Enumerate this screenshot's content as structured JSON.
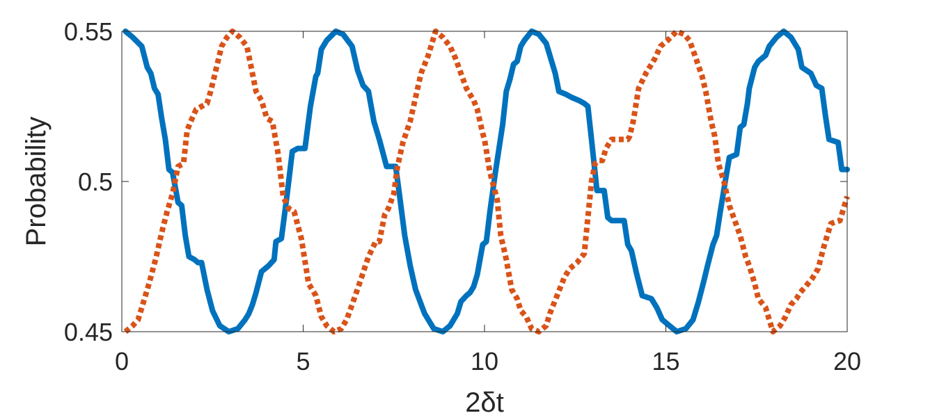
{
  "chart_data": {
    "type": "line",
    "title": "",
    "xlabel": "2δt",
    "ylabel": "Probability",
    "xlim": [
      0,
      20
    ],
    "ylim": [
      0.45,
      0.55
    ],
    "xticks": [
      0,
      5,
      10,
      15,
      20
    ],
    "yticks": [
      0.45,
      0.5,
      0.55
    ],
    "x_tick_labels": [
      "0",
      "5",
      "10",
      "15",
      "20"
    ],
    "y_tick_labels": [
      "0.45",
      "0.5",
      "0.55"
    ],
    "grid": false,
    "legend": "none",
    "series": [
      {
        "color": "#0072BD",
        "style": "solid",
        "points": [
          [
            0.1,
            0.55
          ],
          [
            0.3,
            0.548
          ],
          [
            0.55,
            0.545
          ],
          [
            0.7,
            0.538
          ],
          [
            0.8,
            0.536
          ],
          [
            0.9,
            0.531
          ],
          [
            1.0,
            0.529
          ],
          [
            1.1,
            0.521
          ],
          [
            1.2,
            0.514
          ],
          [
            1.3,
            0.504
          ],
          [
            1.4,
            0.503
          ],
          [
            1.55,
            0.493
          ],
          [
            1.65,
            0.492
          ],
          [
            1.75,
            0.482
          ],
          [
            1.85,
            0.475
          ],
          [
            2.0,
            0.474
          ],
          [
            2.1,
            0.473
          ],
          [
            2.2,
            0.473
          ],
          [
            2.35,
            0.464
          ],
          [
            2.5,
            0.457
          ],
          [
            2.7,
            0.452
          ],
          [
            2.95,
            0.45
          ],
          [
            3.2,
            0.451
          ],
          [
            3.4,
            0.454
          ],
          [
            3.5,
            0.456
          ],
          [
            3.6,
            0.459
          ],
          [
            3.7,
            0.463
          ],
          [
            3.85,
            0.47
          ],
          [
            4.05,
            0.472
          ],
          [
            4.2,
            0.474
          ],
          [
            4.25,
            0.48
          ],
          [
            4.4,
            0.481
          ],
          [
            4.55,
            0.495
          ],
          [
            4.7,
            0.51
          ],
          [
            4.85,
            0.511
          ],
          [
            5.05,
            0.511
          ],
          [
            5.2,
            0.525
          ],
          [
            5.35,
            0.535
          ],
          [
            5.4,
            0.536
          ],
          [
            5.5,
            0.544
          ],
          [
            5.65,
            0.547
          ],
          [
            5.9,
            0.55
          ],
          [
            6.1,
            0.549
          ],
          [
            6.35,
            0.545
          ],
          [
            6.5,
            0.537
          ],
          [
            6.65,
            0.532
          ],
          [
            6.8,
            0.53
          ],
          [
            6.95,
            0.52
          ],
          [
            7.1,
            0.514
          ],
          [
            7.3,
            0.505
          ],
          [
            7.55,
            0.505
          ],
          [
            7.65,
            0.496
          ],
          [
            7.8,
            0.482
          ],
          [
            7.95,
            0.472
          ],
          [
            8.1,
            0.464
          ],
          [
            8.35,
            0.456
          ],
          [
            8.6,
            0.451
          ],
          [
            8.85,
            0.45
          ],
          [
            9.05,
            0.452
          ],
          [
            9.25,
            0.456
          ],
          [
            9.35,
            0.46
          ],
          [
            9.5,
            0.462
          ],
          [
            9.6,
            0.463
          ],
          [
            9.7,
            0.465
          ],
          [
            9.8,
            0.469
          ],
          [
            9.95,
            0.479
          ],
          [
            10.05,
            0.48
          ],
          [
            10.15,
            0.49
          ],
          [
            10.3,
            0.503
          ],
          [
            10.5,
            0.519
          ],
          [
            10.6,
            0.53
          ],
          [
            10.7,
            0.534
          ],
          [
            10.8,
            0.539
          ],
          [
            10.9,
            0.54
          ],
          [
            11.0,
            0.545
          ],
          [
            11.1,
            0.547
          ],
          [
            11.3,
            0.55
          ],
          [
            11.5,
            0.549
          ],
          [
            11.7,
            0.546
          ],
          [
            11.85,
            0.54
          ],
          [
            11.95,
            0.536
          ],
          [
            12.05,
            0.53
          ],
          [
            12.25,
            0.529
          ],
          [
            12.4,
            0.528
          ],
          [
            12.6,
            0.527
          ],
          [
            12.75,
            0.526
          ],
          [
            12.85,
            0.525
          ],
          [
            12.95,
            0.514
          ],
          [
            13.1,
            0.497
          ],
          [
            13.3,
            0.497
          ],
          [
            13.4,
            0.488
          ],
          [
            13.5,
            0.487
          ],
          [
            13.6,
            0.487
          ],
          [
            13.85,
            0.487
          ],
          [
            13.95,
            0.479
          ],
          [
            14.05,
            0.477
          ],
          [
            14.2,
            0.469
          ],
          [
            14.35,
            0.462
          ],
          [
            14.6,
            0.461
          ],
          [
            14.75,
            0.458
          ],
          [
            14.9,
            0.454
          ],
          [
            15.1,
            0.452
          ],
          [
            15.3,
            0.45
          ],
          [
            15.55,
            0.451
          ],
          [
            15.75,
            0.454
          ],
          [
            15.9,
            0.46
          ],
          [
            16.05,
            0.467
          ],
          [
            16.15,
            0.472
          ],
          [
            16.3,
            0.479
          ],
          [
            16.4,
            0.482
          ],
          [
            16.5,
            0.49
          ],
          [
            16.65,
            0.501
          ],
          [
            16.75,
            0.508
          ],
          [
            16.95,
            0.509
          ],
          [
            17.05,
            0.518
          ],
          [
            17.15,
            0.519
          ],
          [
            17.25,
            0.526
          ],
          [
            17.3,
            0.531
          ],
          [
            17.45,
            0.538
          ],
          [
            17.55,
            0.54
          ],
          [
            17.75,
            0.542
          ],
          [
            17.85,
            0.545
          ],
          [
            18.05,
            0.548
          ],
          [
            18.25,
            0.55
          ],
          [
            18.45,
            0.548
          ],
          [
            18.65,
            0.544
          ],
          [
            18.75,
            0.538
          ],
          [
            19.0,
            0.536
          ],
          [
            19.15,
            0.532
          ],
          [
            19.3,
            0.531
          ],
          [
            19.4,
            0.522
          ],
          [
            19.5,
            0.514
          ],
          [
            19.75,
            0.513
          ],
          [
            19.85,
            0.504
          ],
          [
            20.0,
            0.504
          ]
        ]
      },
      {
        "color": "#D95319",
        "style": "dotted",
        "points": [
          [
            0.1,
            0.45
          ],
          [
            0.3,
            0.452
          ],
          [
            0.45,
            0.454
          ],
          [
            0.55,
            0.458
          ],
          [
            0.75,
            0.466
          ],
          [
            0.95,
            0.475
          ],
          [
            1.1,
            0.483
          ],
          [
            1.25,
            0.49
          ],
          [
            1.4,
            0.496
          ],
          [
            1.55,
            0.505
          ],
          [
            1.7,
            0.506
          ],
          [
            1.8,
            0.517
          ],
          [
            1.9,
            0.52
          ],
          [
            2.05,
            0.524
          ],
          [
            2.2,
            0.525
          ],
          [
            2.35,
            0.526
          ],
          [
            2.45,
            0.53
          ],
          [
            2.55,
            0.535
          ],
          [
            2.75,
            0.545
          ],
          [
            2.9,
            0.548
          ],
          [
            3.05,
            0.55
          ],
          [
            3.25,
            0.548
          ],
          [
            3.45,
            0.545
          ],
          [
            3.55,
            0.539
          ],
          [
            3.7,
            0.53
          ],
          [
            3.85,
            0.527
          ],
          [
            4.0,
            0.521
          ],
          [
            4.15,
            0.52
          ],
          [
            4.3,
            0.51
          ],
          [
            4.45,
            0.495
          ],
          [
            4.6,
            0.491
          ],
          [
            4.75,
            0.49
          ],
          [
            4.95,
            0.481
          ],
          [
            5.15,
            0.466
          ],
          [
            5.35,
            0.462
          ],
          [
            5.5,
            0.455
          ],
          [
            5.65,
            0.452
          ],
          [
            5.85,
            0.45
          ],
          [
            6.05,
            0.451
          ],
          [
            6.2,
            0.454
          ],
          [
            6.35,
            0.459
          ],
          [
            6.55,
            0.466
          ],
          [
            6.8,
            0.475
          ],
          [
            7.0,
            0.48
          ],
          [
            7.1,
            0.48
          ],
          [
            7.25,
            0.489
          ],
          [
            7.35,
            0.491
          ],
          [
            7.5,
            0.496
          ],
          [
            7.6,
            0.505
          ],
          [
            7.75,
            0.513
          ],
          [
            7.95,
            0.52
          ],
          [
            8.1,
            0.528
          ],
          [
            8.25,
            0.536
          ],
          [
            8.45,
            0.542
          ],
          [
            8.65,
            0.55
          ],
          [
            8.85,
            0.548
          ],
          [
            9.05,
            0.545
          ],
          [
            9.2,
            0.541
          ],
          [
            9.35,
            0.536
          ],
          [
            9.5,
            0.531
          ],
          [
            9.7,
            0.527
          ],
          [
            9.8,
            0.524
          ],
          [
            9.95,
            0.516
          ],
          [
            10.0,
            0.514
          ],
          [
            10.15,
            0.503
          ],
          [
            10.35,
            0.494
          ],
          [
            10.45,
            0.482
          ],
          [
            10.6,
            0.474
          ],
          [
            10.75,
            0.464
          ],
          [
            10.9,
            0.461
          ],
          [
            11.0,
            0.457
          ],
          [
            11.15,
            0.455
          ],
          [
            11.3,
            0.451
          ],
          [
            11.5,
            0.45
          ],
          [
            11.7,
            0.452
          ],
          [
            11.8,
            0.456
          ],
          [
            12.0,
            0.462
          ],
          [
            12.2,
            0.468
          ],
          [
            12.35,
            0.471
          ],
          [
            12.55,
            0.473
          ],
          [
            12.75,
            0.476
          ],
          [
            12.85,
            0.488
          ],
          [
            12.95,
            0.5
          ],
          [
            13.05,
            0.506
          ],
          [
            13.15,
            0.507
          ],
          [
            13.25,
            0.507
          ],
          [
            13.35,
            0.511
          ],
          [
            13.5,
            0.514
          ],
          [
            13.7,
            0.514
          ],
          [
            13.95,
            0.514
          ],
          [
            14.0,
            0.515
          ],
          [
            14.1,
            0.52
          ],
          [
            14.25,
            0.531
          ],
          [
            14.45,
            0.536
          ],
          [
            14.55,
            0.538
          ],
          [
            14.7,
            0.541
          ],
          [
            14.85,
            0.545
          ],
          [
            15.05,
            0.547
          ],
          [
            15.3,
            0.55
          ],
          [
            15.5,
            0.549
          ],
          [
            15.65,
            0.547
          ],
          [
            15.8,
            0.542
          ],
          [
            16.0,
            0.535
          ],
          [
            16.1,
            0.53
          ],
          [
            16.25,
            0.52
          ],
          [
            16.35,
            0.515
          ],
          [
            16.45,
            0.506
          ],
          [
            16.6,
            0.5
          ],
          [
            16.75,
            0.492
          ],
          [
            16.9,
            0.487
          ],
          [
            17.05,
            0.482
          ],
          [
            17.2,
            0.475
          ],
          [
            17.3,
            0.472
          ],
          [
            17.45,
            0.466
          ],
          [
            17.55,
            0.461
          ],
          [
            17.75,
            0.458
          ],
          [
            17.95,
            0.45
          ],
          [
            18.15,
            0.452
          ],
          [
            18.3,
            0.455
          ],
          [
            18.45,
            0.459
          ],
          [
            18.6,
            0.461
          ],
          [
            18.7,
            0.463
          ],
          [
            18.85,
            0.465
          ],
          [
            19.05,
            0.468
          ],
          [
            19.2,
            0.471
          ],
          [
            19.35,
            0.478
          ],
          [
            19.55,
            0.486
          ],
          [
            19.8,
            0.487
          ],
          [
            20.0,
            0.495
          ]
        ]
      }
    ]
  }
}
